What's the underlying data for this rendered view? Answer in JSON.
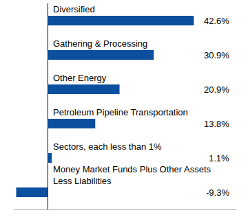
{
  "chart_data": {
    "type": "bar",
    "orientation": "horizontal",
    "categories": [
      "Diversified",
      "Gathering & Processing",
      "Other Energy",
      "Petroleum Pipeline Transportation",
      "Sectors, each less than 1%",
      "Money Market Funds Plus Other Assets Less Liabilities"
    ],
    "values": [
      42.6,
      30.9,
      20.9,
      13.8,
      1.1,
      -9.3
    ],
    "value_labels": [
      "42.6%",
      "30.9%",
      "20.9%",
      "13.8%",
      "1.1%",
      "-9.3%"
    ],
    "data_labels": true,
    "color": "#0b4f9e",
    "xlim": [
      -10,
      55
    ],
    "xticks": [
      0
    ],
    "grid": true,
    "tick_labels": false
  }
}
